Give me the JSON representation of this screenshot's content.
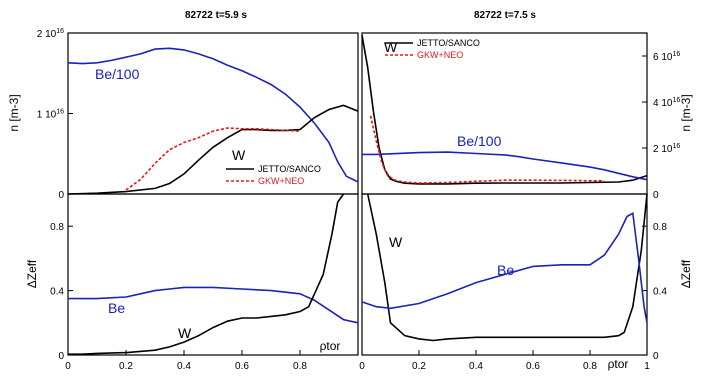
{
  "chart_data": [
    {
      "type": "line",
      "title": "82722 t=5.9 s",
      "ylabel": "n [m-3]",
      "xlim": [
        0,
        1
      ],
      "ylim": [
        0,
        2e+16
      ],
      "yticks": [
        {
          "v": 0,
          "label": "0"
        },
        {
          "v": 1e+16,
          "label": "1 10",
          "exp": "16"
        },
        {
          "v": 2e+16,
          "label": "2 10",
          "exp": "16"
        }
      ],
      "annotations": [
        {
          "text": "Be/100",
          "color": "#1c22b8"
        },
        {
          "text": "W",
          "color": "#000000"
        }
      ],
      "legend": [
        "JETTO/SANCO",
        "GKW+NEO"
      ],
      "series": [
        {
          "name": "Be/100",
          "color": "#1c22b8",
          "dash": false,
          "x": [
            0,
            0.05,
            0.1,
            0.15,
            0.2,
            0.25,
            0.3,
            0.35,
            0.4,
            0.45,
            0.5,
            0.55,
            0.6,
            0.65,
            0.7,
            0.75,
            0.8,
            0.85,
            0.9,
            0.93,
            0.96,
            1.0
          ],
          "y": [
            1.63e+16,
            1.62e+16,
            1.63e+16,
            1.66e+16,
            1.7e+16,
            1.74e+16,
            1.8e+16,
            1.81e+16,
            1.79e+16,
            1.74e+16,
            1.68e+16,
            1.6e+16,
            1.53e+16,
            1.45e+16,
            1.36e+16,
            1.24e+16,
            1.08e+16,
            8800000000000000.0,
            6400000000000000.0,
            4000000000000000.0,
            2200000000000000.0,
            1500000000000000.0
          ]
        },
        {
          "name": "JETTO/SANCO",
          "color": "#000000",
          "dash": false,
          "x": [
            0,
            0.1,
            0.2,
            0.3,
            0.35,
            0.4,
            0.45,
            0.5,
            0.55,
            0.6,
            0.65,
            0.7,
            0.75,
            0.8,
            0.85,
            0.9,
            0.95,
            1.0
          ],
          "y": [
            0,
            100000000000000.0,
            300000000000000.0,
            700000000000000.0,
            1300000000000000.0,
            2500000000000000.0,
            4200000000000000.0,
            5800000000000000.0,
            7000000000000000.0,
            8000000000000000.0,
            8000000000000000.0,
            7900000000000000.0,
            7900000000000000.0,
            8000000000000000.0,
            9500000000000000.0,
            1.05e+16,
            1.1e+16,
            1.03e+16
          ]
        },
        {
          "name": "GKW+NEO",
          "color": "#dd1b1b",
          "dash": true,
          "x": [
            0.2,
            0.25,
            0.3,
            0.35,
            0.4,
            0.45,
            0.5,
            0.55,
            0.6,
            0.65,
            0.7,
            0.75,
            0.8
          ],
          "y": [
            500000000000000.0,
            1800000000000000.0,
            3800000000000000.0,
            5500000000000000.0,
            6400000000000000.0,
            7000000000000000.0,
            7800000000000000.0,
            8200000000000000.0,
            8100000000000000.0,
            8100000000000000.0,
            8000000000000000.0,
            7900000000000000.0,
            7800000000000000.0
          ]
        }
      ]
    },
    {
      "type": "line",
      "title": "82722 t=7.5 s",
      "ylabel": "n [m-3]",
      "xlim": [
        0,
        1
      ],
      "ylim": [
        0,
        7e+16
      ],
      "yticks": [
        {
          "v": 0,
          "label": "0"
        },
        {
          "v": 2e+16,
          "label": "2 10",
          "exp": "16"
        },
        {
          "v": 4e+16,
          "label": "4 10",
          "exp": "16"
        },
        {
          "v": 6e+16,
          "label": "6 10",
          "exp": "16"
        }
      ],
      "annotations": [
        {
          "text": "W",
          "color": "#000000"
        },
        {
          "text": "Be/100",
          "color": "#1c22b8"
        }
      ],
      "legend": [
        "JETTO/SANCO",
        "GKW+NEO"
      ],
      "series": [
        {
          "name": "JETTO/SANCO",
          "color": "#000000",
          "dash": false,
          "x": [
            0,
            0.02,
            0.04,
            0.06,
            0.08,
            0.1,
            0.12,
            0.15,
            0.2,
            0.3,
            0.4,
            0.5,
            0.6,
            0.7,
            0.8,
            0.9,
            0.95,
            1.0
          ],
          "y": [
            6.9e+16,
            5.5e+16,
            3.6e+16,
            2e+16,
            1.05e+16,
            6500000000000000.0,
            5500000000000000.0,
            4700000000000000.0,
            4400000000000000.0,
            4400000000000000.0,
            4700000000000000.0,
            4800000000000000.0,
            4800000000000000.0,
            4800000000000000.0,
            5000000000000000.0,
            5200000000000000.0,
            6000000000000000.0,
            8000000000000000.0
          ]
        },
        {
          "name": "GKW+NEO",
          "color": "#dd1b1b",
          "dash": true,
          "x": [
            0.03,
            0.05,
            0.07,
            0.09,
            0.12,
            0.15,
            0.2,
            0.3,
            0.4,
            0.5,
            0.6,
            0.7,
            0.8,
            0.85
          ],
          "y": [
            3.4e+16,
            2.3e+16,
            1.35e+16,
            8000000000000000.0,
            5800000000000000.0,
            5200000000000000.0,
            4800000000000000.0,
            5000000000000000.0,
            5500000000000000.0,
            6000000000000000.0,
            6000000000000000.0,
            5900000000000000.0,
            5800000000000000.0,
            5800000000000000.0
          ]
        },
        {
          "name": "Be/100",
          "color": "#1c22b8",
          "dash": false,
          "x": [
            0,
            0.05,
            0.1,
            0.2,
            0.3,
            0.4,
            0.5,
            0.55,
            0.6,
            0.7,
            0.8,
            0.85,
            0.9,
            0.95,
            1.0
          ],
          "y": [
            1.72e+16,
            1.72e+16,
            1.75e+16,
            1.8e+16,
            1.82e+16,
            1.76e+16,
            1.7e+16,
            1.62e+16,
            1.52e+16,
            1.35e+16,
            1.17e+16,
            1.05e+16,
            9000000000000000.0,
            7500000000000000.0,
            6200000000000000.0
          ]
        }
      ]
    },
    {
      "type": "line",
      "ylabel": "ΔZeff",
      "xlabel": "ρtor",
      "xlim": [
        0,
        1
      ],
      "ylim": [
        0,
        1.0
      ],
      "xticks": [
        "0",
        "0.2",
        "0.4",
        "0.6",
        "0.8"
      ],
      "yticks": [
        {
          "v": 0,
          "label": "0"
        },
        {
          "v": 0.4,
          "label": "0.4"
        },
        {
          "v": 0.8,
          "label": "0.8"
        }
      ],
      "annotations": [
        {
          "text": "Be",
          "color": "#1c22b8"
        },
        {
          "text": "W",
          "color": "#000000"
        }
      ],
      "series": [
        {
          "name": "Be",
          "color": "#1c22b8",
          "dash": false,
          "x": [
            0,
            0.05,
            0.1,
            0.2,
            0.25,
            0.3,
            0.35,
            0.4,
            0.45,
            0.5,
            0.6,
            0.7,
            0.75,
            0.8,
            0.85,
            0.9,
            0.95,
            1.0
          ],
          "y": [
            0.35,
            0.35,
            0.35,
            0.36,
            0.38,
            0.4,
            0.41,
            0.42,
            0.42,
            0.42,
            0.41,
            0.4,
            0.39,
            0.38,
            0.34,
            0.28,
            0.22,
            0.2
          ]
        },
        {
          "name": "W",
          "color": "#000000",
          "dash": false,
          "x": [
            0,
            0.05,
            0.1,
            0.2,
            0.3,
            0.35,
            0.4,
            0.45,
            0.5,
            0.55,
            0.6,
            0.65,
            0.7,
            0.75,
            0.8,
            0.83,
            0.85,
            0.88,
            0.91,
            0.93,
            0.95
          ],
          "y": [
            0.005,
            0.005,
            0.01,
            0.015,
            0.03,
            0.05,
            0.08,
            0.12,
            0.17,
            0.21,
            0.23,
            0.23,
            0.24,
            0.25,
            0.27,
            0.3,
            0.38,
            0.5,
            0.75,
            0.95,
            1.0
          ]
        }
      ]
    },
    {
      "type": "line",
      "ylabel": "ΔZeff",
      "xlabel": "ρtor",
      "xlim": [
        0,
        1
      ],
      "ylim": [
        0,
        1.0
      ],
      "xticks": [
        "0",
        "0.2",
        "0.4",
        "0.6",
        "0.8",
        "1"
      ],
      "yticks": [
        {
          "v": 0,
          "label": "0"
        },
        {
          "v": 0.4,
          "label": "0.4"
        },
        {
          "v": 0.8,
          "label": "0.8"
        }
      ],
      "annotations": [
        {
          "text": "W",
          "color": "#000000"
        },
        {
          "text": "Be",
          "color": "#1c22b8"
        }
      ],
      "series": [
        {
          "name": "W",
          "color": "#000000",
          "dash": false,
          "x": [
            0.02,
            0.05,
            0.08,
            0.1,
            0.15,
            0.2,
            0.25,
            0.3,
            0.4,
            0.5,
            0.6,
            0.7,
            0.8,
            0.85,
            0.9,
            0.92,
            0.95,
            0.98,
            1.0
          ],
          "y": [
            1.0,
            0.75,
            0.45,
            0.2,
            0.12,
            0.1,
            0.09,
            0.1,
            0.11,
            0.11,
            0.11,
            0.11,
            0.11,
            0.11,
            0.12,
            0.14,
            0.3,
            0.65,
            1.0
          ]
        },
        {
          "name": "Be",
          "color": "#1c22b8",
          "dash": false,
          "x": [
            0,
            0.05,
            0.1,
            0.2,
            0.3,
            0.4,
            0.5,
            0.6,
            0.7,
            0.8,
            0.85,
            0.9,
            0.93,
            0.95,
            0.97,
            0.99,
            1.0
          ],
          "y": [
            0.33,
            0.3,
            0.29,
            0.32,
            0.38,
            0.45,
            0.5,
            0.55,
            0.56,
            0.56,
            0.62,
            0.75,
            0.86,
            0.88,
            0.6,
            0.3,
            0.2
          ]
        }
      ]
    }
  ]
}
